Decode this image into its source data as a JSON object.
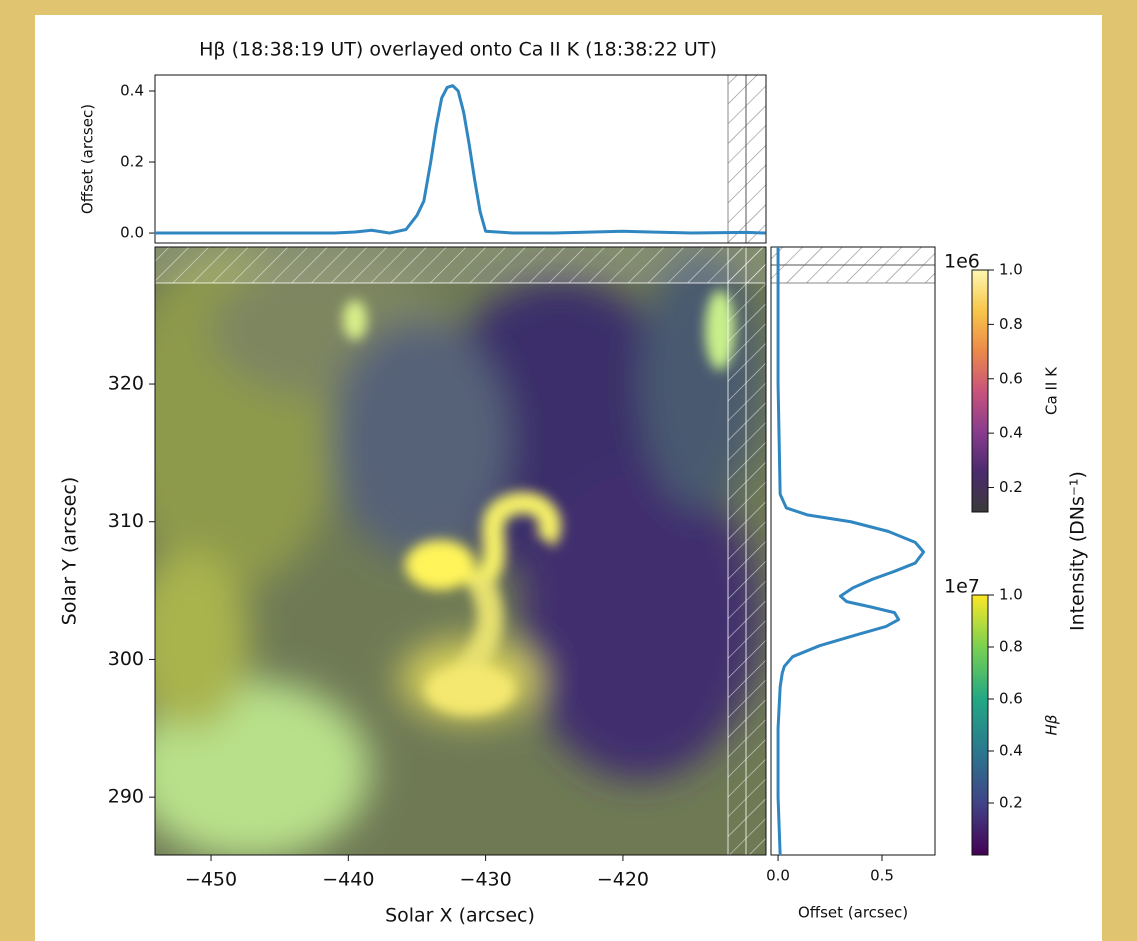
{
  "chart_data": [
    {
      "type": "line",
      "title": "Hβ (18:38:19 UT) overlayed onto Ca II K (18:38:22 UT)",
      "ylabel": "Offset (arcsec)",
      "color": "#2f86c1",
      "x": [
        -454.1,
        -450,
        -445,
        -441,
        -439.5,
        -438.3,
        -437,
        -435.8,
        -435,
        -434.5,
        -434,
        -433.6,
        -433.2,
        -432.8,
        -432.4,
        -432,
        -431.6,
        -431.2,
        -430.8,
        -430.4,
        -430,
        -428,
        -425,
        -420,
        -415,
        -411,
        -409.6
      ],
      "values": [
        0.0,
        0.0,
        0.0,
        0.0,
        0.003,
        0.008,
        0.0,
        0.01,
        0.05,
        0.09,
        0.2,
        0.3,
        0.38,
        0.41,
        0.415,
        0.4,
        0.34,
        0.25,
        0.15,
        0.06,
        0.005,
        0.0,
        0.0,
        0.005,
        0.0,
        0.002,
        0.0
      ],
      "xlim": [
        -454.08,
        -409.58
      ],
      "ylim": [
        -0.028,
        0.445
      ],
      "yticks": [
        {
          "value": 0,
          "label": "0.0"
        },
        0.2,
        0.4
      ]
    },
    {
      "type": "image",
      "xlabel": "Solar X (arcsec)",
      "ylabel": "Solar Y (arcsec)",
      "xlim": [
        -454.08,
        -409.58
      ],
      "ylim": [
        285.8,
        329.95
      ],
      "xticks": [
        {
          "value": -450,
          "label": "−450"
        },
        {
          "value": -440,
          "label": "−440"
        },
        {
          "value": -430,
          "label": "−430"
        },
        {
          "value": -420,
          "label": "−420"
        }
      ],
      "yticks": [
        290,
        300,
        310,
        320
      ]
    },
    {
      "type": "hline",
      "xlabel": "Offset (arcsec)",
      "color": "#2f86c1",
      "y": [
        329.95,
        320,
        312,
        311,
        310.5,
        310,
        309.3,
        308.5,
        307.8,
        307,
        306.4,
        305.8,
        305.2,
        304.6,
        304.2,
        303.8,
        303.4,
        302.9,
        302.4,
        301.8,
        301,
        300.2,
        299.5,
        299,
        298,
        295,
        290,
        285.8
      ],
      "values": [
        0.0,
        0.0,
        0.01,
        0.04,
        0.14,
        0.35,
        0.53,
        0.66,
        0.7,
        0.66,
        0.56,
        0.45,
        0.36,
        0.3,
        0.33,
        0.45,
        0.56,
        0.58,
        0.52,
        0.38,
        0.2,
        0.07,
        0.03,
        0.02,
        0.01,
        0.0,
        0.0,
        0.01
      ],
      "xlim": [
        -0.034,
        0.755
      ],
      "xticks": [
        {
          "value": 0,
          "label": "0.0"
        },
        0.5
      ],
      "ylim": [
        285.8,
        329.95
      ]
    },
    {
      "type": "colorbar",
      "label": "Ca II K",
      "offset_text": "1e6",
      "shared_label": "Intensity (DNs⁻¹)",
      "colors": [
        "#3a3a3a",
        "#4b2a6e",
        "#8a3c8f",
        "#c8547a",
        "#ec8a4a",
        "#f8c64a",
        "#fcf8b0"
      ],
      "ylim": [
        0.11,
        1.0
      ],
      "yticks": [
        0.2,
        0.4,
        0.6,
        0.8,
        {
          "value": 1,
          "label": "1.0"
        }
      ]
    },
    {
      "type": "colorbar",
      "label": "Hβ",
      "offset_text": "1e7",
      "colors": [
        "#440154",
        "#414487",
        "#2a788e",
        "#22a884",
        "#7ad151",
        "#fde725"
      ],
      "ylim": [
        0.0,
        1.0
      ],
      "yticks": [
        0.2,
        0.4,
        0.6,
        0.8,
        {
          "value": 1,
          "label": "1.0"
        }
      ]
    }
  ]
}
